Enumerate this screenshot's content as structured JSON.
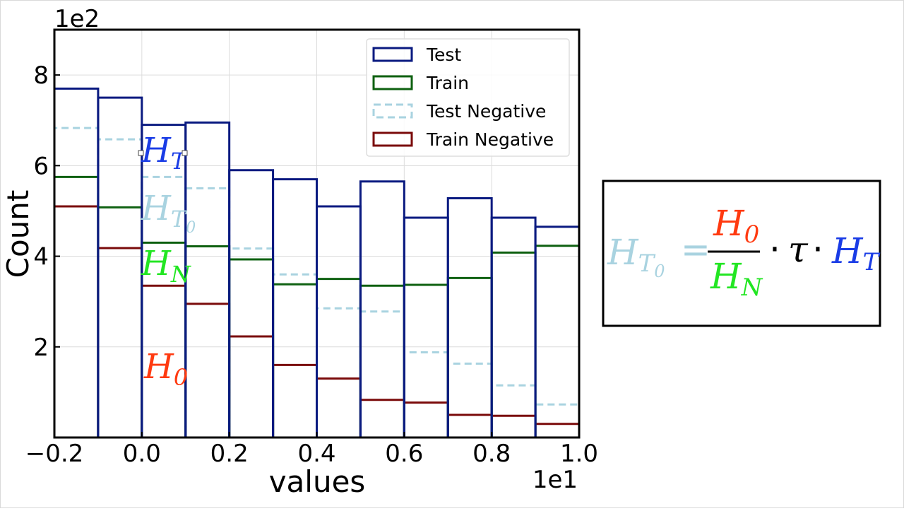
{
  "chart_data": {
    "type": "bar",
    "histogram": true,
    "bin_edges": [
      -0.2,
      -0.1,
      0.0,
      0.1,
      0.2,
      0.3,
      0.4,
      0.5,
      0.6,
      0.7,
      0.8,
      0.9,
      1.0
    ],
    "series": [
      {
        "name": "Test",
        "values": [
          7.7,
          7.5,
          6.9,
          6.95,
          5.9,
          5.7,
          5.1,
          5.65,
          4.85,
          5.28,
          4.85,
          4.65
        ],
        "color": "#0a1a80",
        "style": "solid"
      },
      {
        "name": "Train",
        "values": [
          5.75,
          5.08,
          4.3,
          4.22,
          3.93,
          3.38,
          3.5,
          3.35,
          3.37,
          3.52,
          4.08,
          4.23
        ],
        "color": "#0e6010",
        "style": "solid"
      },
      {
        "name": "Test Negative",
        "values": [
          6.83,
          6.58,
          5.75,
          5.5,
          4.17,
          3.6,
          2.85,
          2.78,
          1.88,
          1.63,
          1.15,
          0.73
        ],
        "color": "#a9d3e0",
        "style": "dashed"
      },
      {
        "name": "Train Negative",
        "values": [
          5.1,
          4.18,
          3.35,
          2.95,
          2.23,
          1.6,
          1.3,
          0.83,
          0.77,
          0.5,
          0.48,
          0.3
        ],
        "color": "#7a0a0a",
        "style": "solid"
      }
    ],
    "xlabel": "values",
    "ylabel": "Count",
    "x_ticks": [
      "−0.2",
      "0.0",
      "0.2",
      "0.4",
      "0.6",
      "0.8",
      "1.0"
    ],
    "y_ticks": [
      "2",
      "4",
      "6",
      "8"
    ],
    "x_offset_label": "1e1",
    "y_offset_label": "1e2",
    "xlim": [
      -0.2,
      1.0
    ],
    "ylim": [
      0,
      9.0
    ],
    "grid": true,
    "legend_position": "top-right"
  },
  "annotations": {
    "H_T": {
      "base": "H",
      "sub": "T",
      "color": "#1a3ce6"
    },
    "H_T0": {
      "base": "H",
      "sub": "T",
      "subsub": "0",
      "color": "#a9d3e0"
    },
    "H_N": {
      "base": "H",
      "sub": "N",
      "color": "#22e622"
    },
    "H_0": {
      "base": "H",
      "sub": "0",
      "color": "#ff3a10"
    }
  },
  "formula": {
    "lhs": {
      "base": "H",
      "sub": "T",
      "subsub": "0",
      "color": "#a9d3e0"
    },
    "equals": "=",
    "numerator": {
      "base": "H",
      "sub": "0",
      "color": "#ff3a10"
    },
    "denominator": {
      "base": "H",
      "sub": "N",
      "color": "#22e622"
    },
    "dot": "·",
    "tau": "τ",
    "rhs": {
      "base": "H",
      "sub": "T",
      "color": "#1a3ce6"
    }
  }
}
